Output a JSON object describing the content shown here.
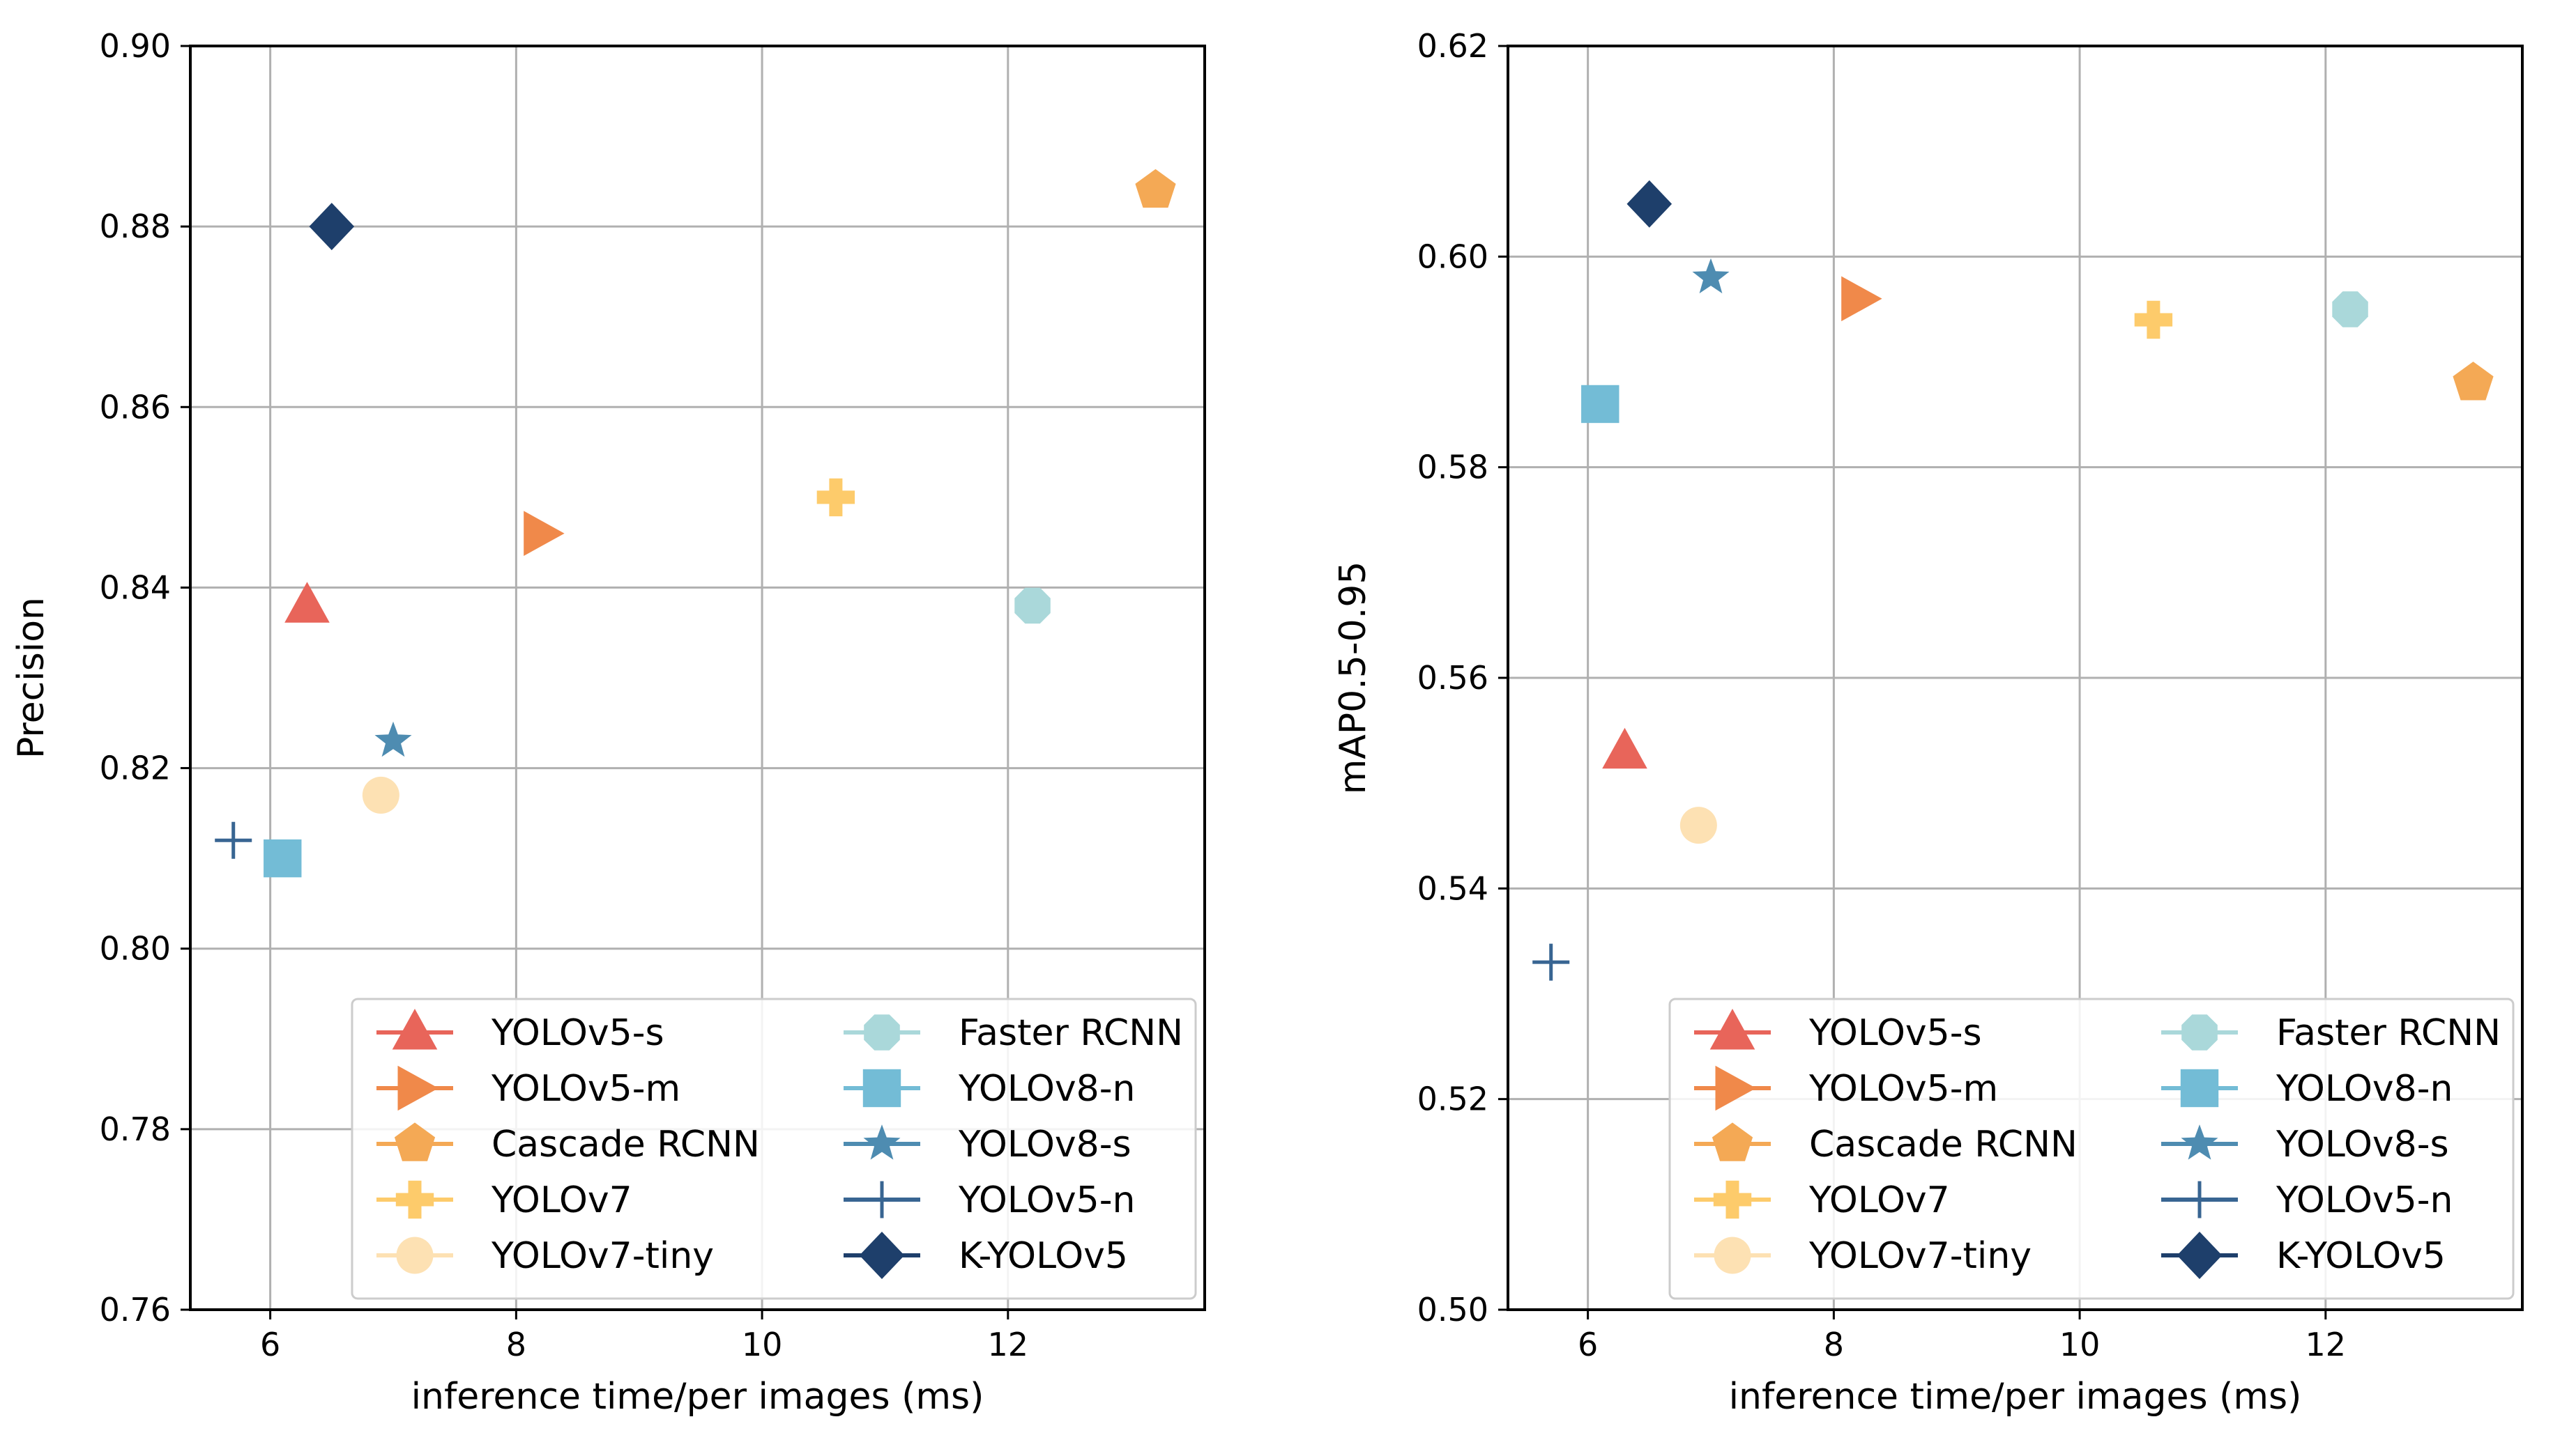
{
  "series_meta": [
    {
      "name": "YOLOv5-s",
      "marker": "triangle-up",
      "color": "#e8655a"
    },
    {
      "name": "YOLOv5-m",
      "marker": "triangle-right",
      "color": "#f0894a"
    },
    {
      "name": "Cascade RCNN",
      "marker": "pentagon",
      "color": "#f4a955"
    },
    {
      "name": "YOLOv7",
      "marker": "plus-filled",
      "color": "#fdcb6b"
    },
    {
      "name": "YOLOv7-tiny",
      "marker": "circle",
      "color": "#fde1b3"
    },
    {
      "name": "Faster RCNN",
      "marker": "octagon",
      "color": "#aad8da"
    },
    {
      "name": "YOLOv8-n",
      "marker": "square",
      "color": "#73bcd6"
    },
    {
      "name": "YOLOv8-s",
      "marker": "star",
      "color": "#4e8cb1"
    },
    {
      "name": "YOLOv5-n",
      "marker": "plus-thin",
      "color": "#386592"
    },
    {
      "name": "K-YOLOv5",
      "marker": "diamond",
      "color": "#1e3f6b"
    }
  ],
  "chart_data": [
    {
      "type": "scatter",
      "title": "",
      "xlabel": "inference time/per images (ms)",
      "ylabel": "Precision",
      "xlim": [
        5.35,
        13.6
      ],
      "ylim": [
        0.76,
        0.9
      ],
      "xticks": [
        6,
        8,
        10,
        12
      ],
      "xtick_labels": [
        "6",
        "8",
        "10",
        "12"
      ],
      "yticks": [
        0.76,
        0.78,
        0.8,
        0.82,
        0.84,
        0.86,
        0.88,
        0.9
      ],
      "ytick_labels": [
        "0.76",
        "0.78",
        "0.80",
        "0.82",
        "0.84",
        "0.86",
        "0.88",
        "0.90"
      ],
      "grid": true,
      "legend_position": "bottom-right",
      "series": [
        {
          "name": "YOLOv5-s",
          "x": 6.3,
          "y": 0.838
        },
        {
          "name": "YOLOv5-m",
          "x": 8.2,
          "y": 0.846
        },
        {
          "name": "Cascade RCNN",
          "x": 13.2,
          "y": 0.884
        },
        {
          "name": "YOLOv7",
          "x": 10.6,
          "y": 0.85
        },
        {
          "name": "YOLOv7-tiny",
          "x": 6.9,
          "y": 0.817
        },
        {
          "name": "Faster RCNN",
          "x": 12.2,
          "y": 0.838
        },
        {
          "name": "YOLOv8-n",
          "x": 6.1,
          "y": 0.81
        },
        {
          "name": "YOLOv8-s",
          "x": 7.0,
          "y": 0.823
        },
        {
          "name": "YOLOv5-n",
          "x": 5.7,
          "y": 0.812
        },
        {
          "name": "K-YOLOv5",
          "x": 6.5,
          "y": 0.88
        }
      ]
    },
    {
      "type": "scatter",
      "title": "",
      "xlabel": "inference time/per images (ms)",
      "ylabel": "mAP0.5-0.95",
      "xlim": [
        5.35,
        13.6
      ],
      "ylim": [
        0.5,
        0.62
      ],
      "xticks": [
        6,
        8,
        10,
        12
      ],
      "xtick_labels": [
        "6",
        "8",
        "10",
        "12"
      ],
      "yticks": [
        0.5,
        0.52,
        0.54,
        0.56,
        0.58,
        0.6,
        0.62
      ],
      "ytick_labels": [
        "0.50",
        "0.52",
        "0.54",
        "0.56",
        "0.58",
        "0.60",
        "0.62"
      ],
      "grid": true,
      "legend_position": "bottom-right",
      "series": [
        {
          "name": "YOLOv5-s",
          "x": 6.3,
          "y": 0.553
        },
        {
          "name": "YOLOv5-m",
          "x": 8.2,
          "y": 0.596
        },
        {
          "name": "Cascade RCNN",
          "x": 13.2,
          "y": 0.588
        },
        {
          "name": "YOLOv7",
          "x": 10.6,
          "y": 0.594
        },
        {
          "name": "YOLOv7-tiny",
          "x": 6.9,
          "y": 0.546
        },
        {
          "name": "Faster RCNN",
          "x": 12.2,
          "y": 0.595
        },
        {
          "name": "YOLOv8-n",
          "x": 6.1,
          "y": 0.586
        },
        {
          "name": "YOLOv8-s",
          "x": 7.0,
          "y": 0.598
        },
        {
          "name": "YOLOv5-n",
          "x": 5.7,
          "y": 0.533
        },
        {
          "name": "K-YOLOv5",
          "x": 6.5,
          "y": 0.605
        }
      ]
    }
  ]
}
